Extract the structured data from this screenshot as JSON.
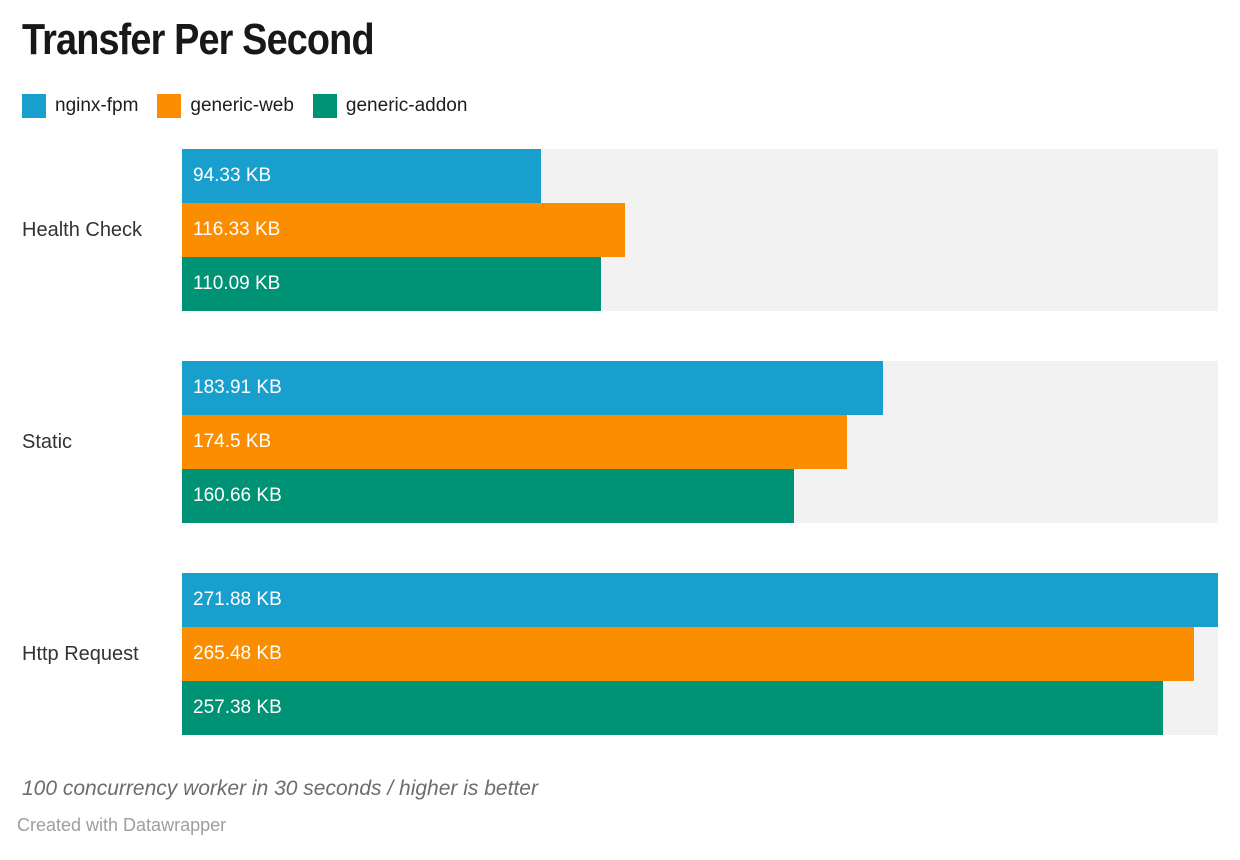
{
  "title": "Transfer Per Second",
  "legend": {
    "items": [
      {
        "label": "nginx-fpm",
        "color": "#199fcd"
      },
      {
        "label": "generic-web",
        "color": "#fa8e00"
      },
      {
        "label": "generic-addon",
        "color": "#009274"
      }
    ]
  },
  "chart_data": {
    "type": "bar",
    "orientation": "horizontal",
    "title": "Transfer Per Second",
    "categories": [
      "Health Check",
      "Static",
      "Http Request"
    ],
    "series": [
      {
        "name": "nginx-fpm",
        "color": "#199fcd",
        "values": [
          94.33,
          183.91,
          271.88
        ],
        "value_labels": [
          "94.33 KB",
          "183.91 KB",
          "271.88 KB"
        ]
      },
      {
        "name": "generic-web",
        "color": "#fa8e00",
        "values": [
          116.33,
          174.5,
          265.48
        ],
        "value_labels": [
          "116.33 KB",
          "174.5 KB",
          "265.48 KB"
        ]
      },
      {
        "name": "generic-addon",
        "color": "#009274",
        "values": [
          110.09,
          160.66,
          257.38
        ],
        "value_labels": [
          "110.09 KB",
          "160.66 KB",
          "257.38 KB"
        ]
      }
    ],
    "unit": "KB",
    "xlim": [
      0,
      271.88
    ],
    "grid": false,
    "legend_position": "top",
    "track_color": "#f2f2f2",
    "bar_label_color": "#ffffff"
  },
  "footer": {
    "note": "100 concurrency worker in 30 seconds / higher is better",
    "credit": "Created with Datawrapper"
  }
}
